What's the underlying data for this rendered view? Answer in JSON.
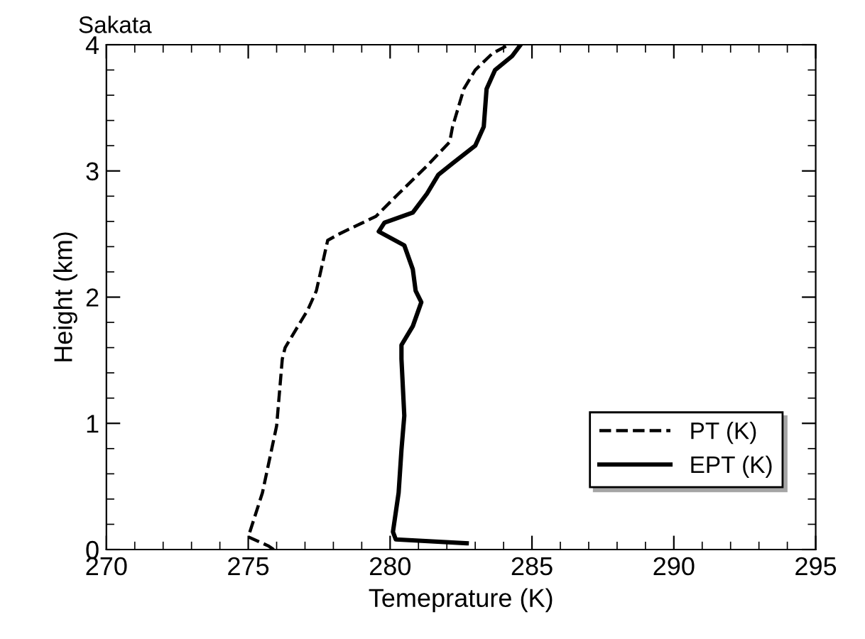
{
  "chart_data": {
    "type": "line",
    "title": "Sakata",
    "xlabel": "Temeprature (K)",
    "ylabel": "Height (km)",
    "xlim": [
      270,
      295
    ],
    "xticks": [
      270,
      275,
      280,
      285,
      290,
      295
    ],
    "ylim": [
      0,
      4
    ],
    "yticks": [
      0,
      1,
      2,
      3,
      4
    ],
    "legend": "bottom right",
    "grid": false,
    "series": [
      {
        "name": "PT (K)",
        "color": "#000000",
        "line_style": "dashed",
        "x": [
          275.9,
          275.7,
          275.0,
          275.5,
          276.0,
          276.2,
          276.3,
          277.1,
          277.4,
          277.8,
          278.2,
          279.5,
          280.3,
          281.3,
          282.1,
          282.2,
          282.6,
          283.0,
          283.6,
          284.1
        ],
        "values": [
          0.0,
          0.03,
          0.1,
          0.45,
          0.98,
          1.51,
          1.6,
          1.9,
          2.05,
          2.45,
          2.5,
          2.64,
          2.82,
          3.04,
          3.23,
          3.35,
          3.65,
          3.8,
          3.93,
          3.99
        ]
      },
      {
        "name": "EPT (K)",
        "color": "#000000",
        "line_style": "solid",
        "x": [
          282.7,
          280.2,
          280.1,
          280.3,
          280.4,
          280.5,
          280.4,
          280.4,
          280.8,
          281.1,
          280.9,
          280.8,
          280.5,
          279.6,
          279.8,
          280.8,
          281.3,
          281.7,
          282.2,
          283.0,
          283.3,
          283.4,
          283.7,
          284.3,
          284.6
        ],
        "values": [
          0.05,
          0.08,
          0.14,
          0.45,
          0.79,
          1.06,
          1.51,
          1.62,
          1.77,
          1.96,
          2.05,
          2.22,
          2.41,
          2.52,
          2.59,
          2.67,
          2.82,
          2.97,
          3.06,
          3.2,
          3.35,
          3.65,
          3.8,
          3.91,
          4.0
        ]
      }
    ]
  }
}
